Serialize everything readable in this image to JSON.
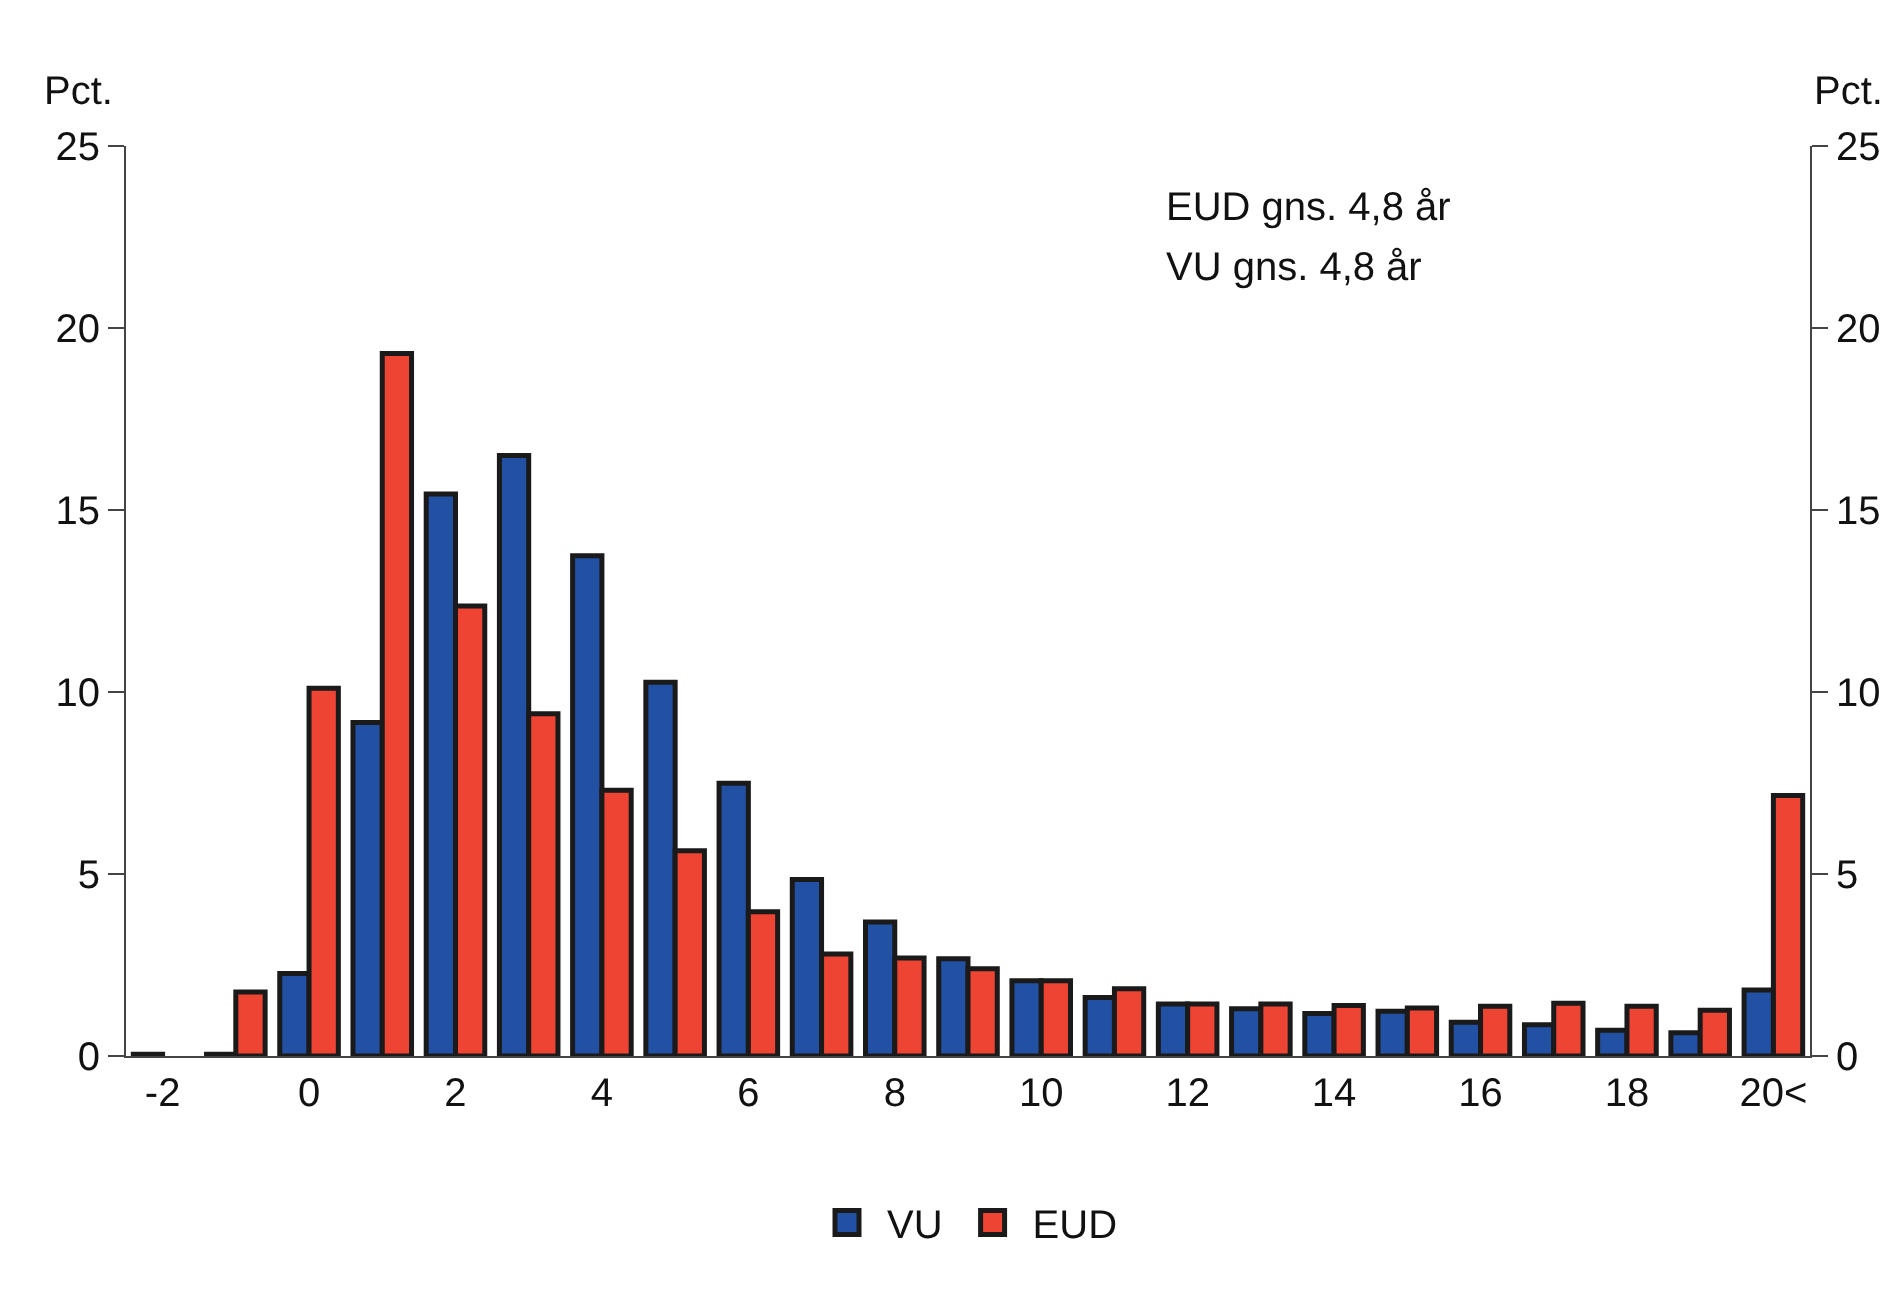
{
  "chart_data": {
    "type": "bar",
    "categories": [
      "-2",
      null,
      "0",
      null,
      "2",
      null,
      "4",
      null,
      "6",
      null,
      "8",
      null,
      "10",
      null,
      "12",
      null,
      "14",
      null,
      "16",
      null,
      "18",
      null,
      "20<"
    ],
    "series": [
      {
        "name": "VU",
        "color": "#2251a3",
        "values": [
          0.05,
          0.05,
          2.27,
          9.16,
          15.44,
          16.5,
          13.74,
          10.27,
          7.49,
          4.85,
          3.68,
          2.67,
          2.07,
          1.61,
          1.43,
          1.3,
          1.17,
          1.23,
          0.93,
          0.86,
          0.71,
          0.64,
          1.81
        ]
      },
      {
        "name": "EUD",
        "color": "#ee4433",
        "values": [
          null,
          1.76,
          10.1,
          19.3,
          12.36,
          9.4,
          7.3,
          5.64,
          3.96,
          2.8,
          2.69,
          2.4,
          2.07,
          1.85,
          1.43,
          1.43,
          1.39,
          1.32,
          1.37,
          1.45,
          1.37,
          1.26,
          7.16
        ]
      }
    ],
    "ylabel": "Pct.",
    "y2label": "Pct.",
    "ylim": [
      0,
      25
    ],
    "yticks": [
      0,
      5,
      10,
      15,
      20,
      25
    ],
    "y2lim": [
      0,
      25
    ],
    "y2ticks": [
      0,
      5,
      10,
      15,
      20,
      25
    ],
    "annotations": [
      "EUD gns. 4,8 år",
      "VU gns. 4,8 år"
    ],
    "legend": "bottom"
  }
}
